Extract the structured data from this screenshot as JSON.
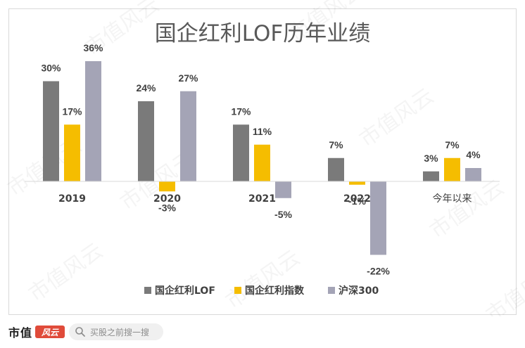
{
  "chart_data": {
    "type": "bar",
    "title": "国企红利LOF历年业绩",
    "categories": [
      "2019",
      "2020",
      "2021",
      "2022",
      "今年以来"
    ],
    "series": [
      {
        "name": "国企红利LOF",
        "values": [
          30,
          24,
          17,
          7,
          3
        ],
        "labels": [
          "30%",
          "24%",
          "17%",
          "7%",
          "3%"
        ],
        "color": "#7a7a7a"
      },
      {
        "name": "国企红利指数",
        "values": [
          17,
          -3,
          11,
          -1,
          7
        ],
        "labels": [
          "17%",
          "-3%",
          "11%",
          "-1%",
          "7%"
        ],
        "color": "#f5bd00"
      },
      {
        "name": "沪深300",
        "values": [
          36,
          27,
          -5,
          -22,
          4
        ],
        "labels": [
          "36%",
          "27%",
          "-5%",
          "-22%",
          "4%"
        ],
        "color": "#a4a4b6"
      }
    ],
    "ylim": [
      -30,
      40
    ],
    "grid": false,
    "legend_position": "bottom"
  },
  "watermark": "市值风云",
  "footer": {
    "brand": "市值",
    "brand_mark": "风云",
    "search_text": "买股之前搜一搜",
    "search_icon": "search-icon"
  }
}
